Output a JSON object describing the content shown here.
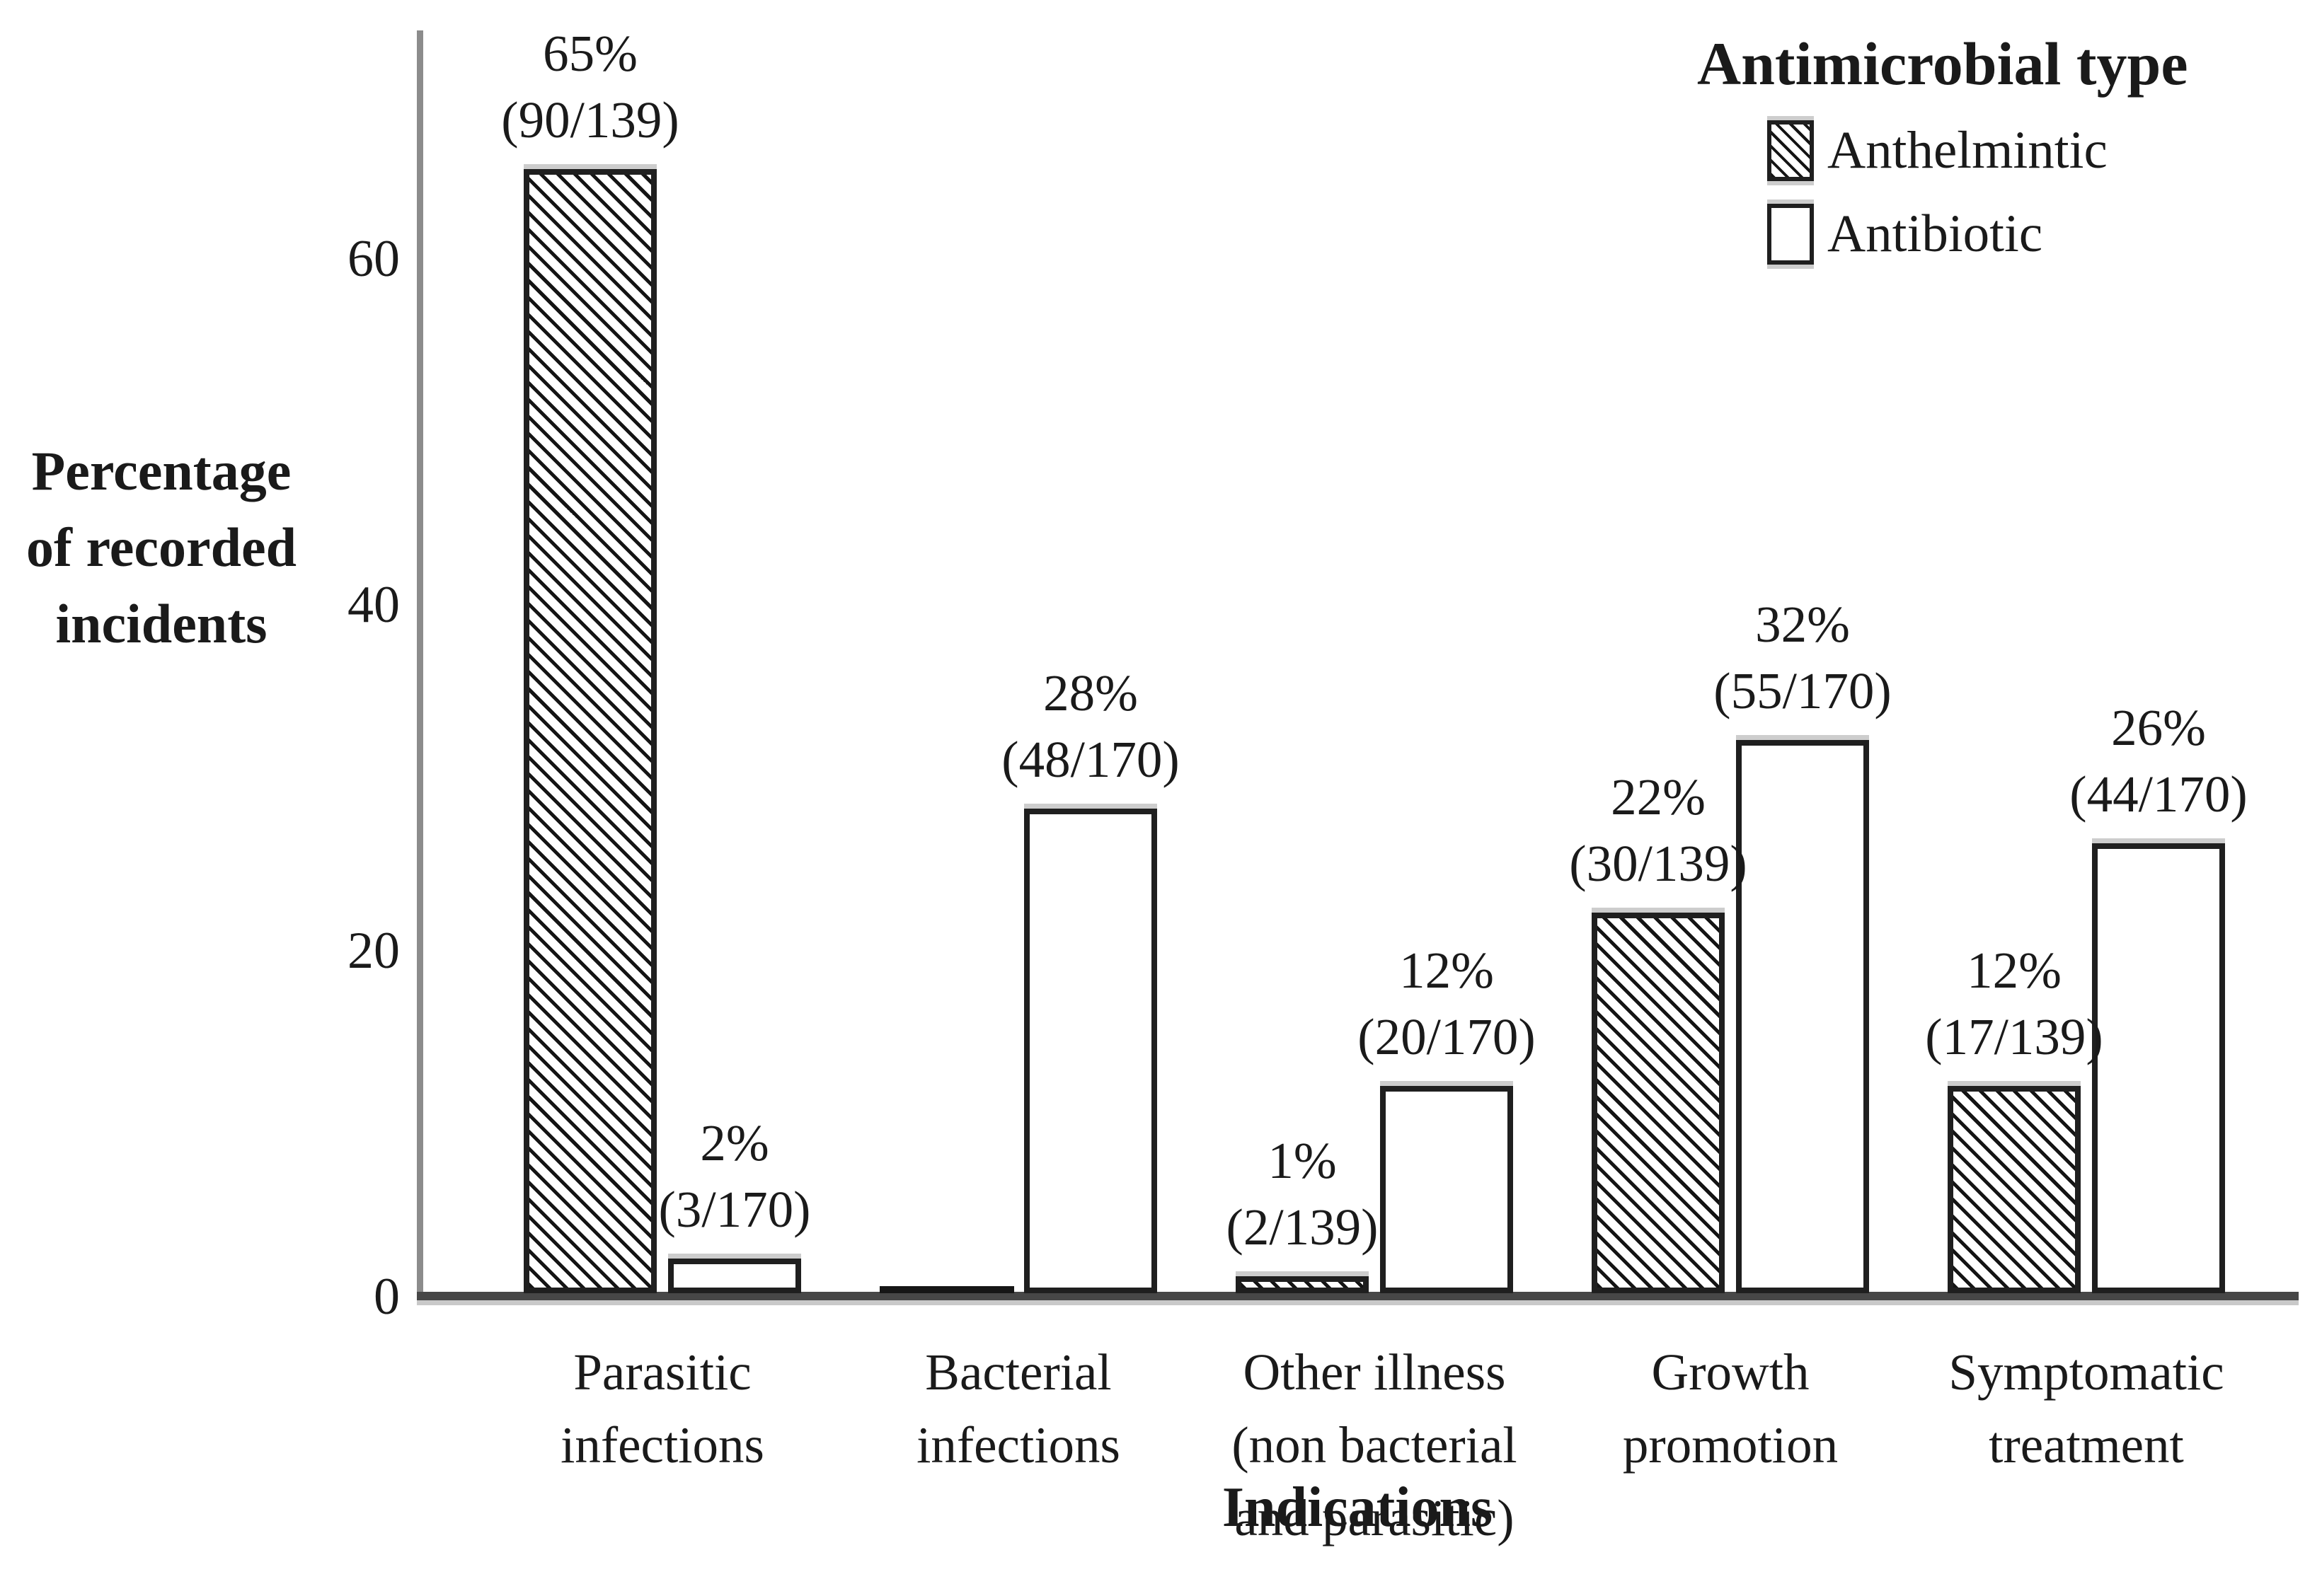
{
  "chart_data": {
    "type": "bar",
    "title": "",
    "xlabel": "Indications",
    "ylabel": "Percentage of recorded incidents",
    "ylabel_lines": [
      "Percentage",
      "of recorded",
      "incidents"
    ],
    "yticks": [
      0,
      20,
      40,
      60
    ],
    "ylim": [
      0,
      73
    ],
    "grid": false,
    "legend_title": "Antimicrobial type",
    "legend_position": "top-right",
    "categories": [
      "Parasitic infections",
      "Bacterial infections",
      "Other illness (non bacterial and parasitic)",
      "Growth promotion",
      "Symptomatic treatment"
    ],
    "category_label_lines": [
      [
        "Parasitic",
        "infections"
      ],
      [
        "Bacterial",
        "infections"
      ],
      [
        "Other illness",
        "(non bacterial",
        "and parasitic)"
      ],
      [
        "Growth",
        "promotion"
      ],
      [
        "Symptomatic",
        "treatment"
      ]
    ],
    "series": [
      {
        "name": "Anthelmintic",
        "style": "hatched",
        "values": [
          65,
          0,
          1,
          22,
          12
        ],
        "bar_labels": [
          [
            "65%",
            "(90/139)"
          ],
          [
            "",
            ""
          ],
          [
            "1%",
            "(2/139)"
          ],
          [
            "22%",
            "(30/139)"
          ],
          [
            "12%",
            "(17/139)"
          ]
        ]
      },
      {
        "name": "Antibiotic",
        "style": "plain",
        "values": [
          2,
          28,
          12,
          32,
          26
        ],
        "bar_labels": [
          [
            "2%",
            "(3/170)"
          ],
          [
            "28%",
            "(48/170)"
          ],
          [
            "12%",
            "(20/170)"
          ],
          [
            "32%",
            "(55/170)"
          ],
          [
            "26%",
            "(44/170)"
          ]
        ]
      }
    ],
    "colors": {
      "text": "#1a1a1a",
      "axis_vertical": "#8c8c8c",
      "axis_horizontal": "#474747",
      "bar_border": "#1f1f1f",
      "shadow": "#cdcdcd",
      "hatch": "#141414",
      "background": "#ffffff"
    }
  }
}
